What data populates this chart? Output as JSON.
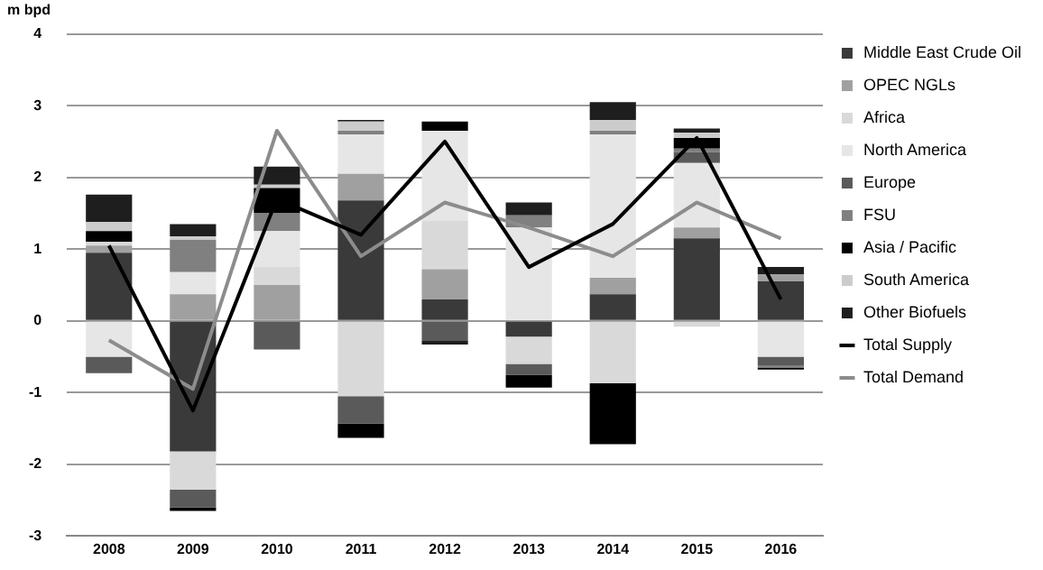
{
  "chart_data": {
    "type": "bar",
    "stacked": true,
    "ylabel": "m bpd",
    "categories": [
      "2008",
      "2009",
      "2010",
      "2011",
      "2012",
      "2013",
      "2014",
      "2015",
      "2016"
    ],
    "ylim": [
      -3,
      4
    ],
    "yticks": [
      -3,
      -2,
      -1,
      0,
      1,
      2,
      3,
      4
    ],
    "grid": "y",
    "legend": "right",
    "marker": "none",
    "series": [
      {
        "name": "Middle East Crude Oil",
        "color": "#3a3a3a",
        "values": [
          0.95,
          -1.82,
          null,
          1.68,
          0.3,
          -0.22,
          0.37,
          1.15,
          0.55
        ]
      },
      {
        "name": "OPEC NGLs",
        "color": "#a0a0a0",
        "values": [
          0.1,
          0.37,
          0.5,
          0.37,
          0.42,
          null,
          0.23,
          0.15,
          0.1
        ]
      },
      {
        "name": "Africa",
        "color": "#d9d9d9",
        "values": [
          0.05,
          -0.53,
          0.25,
          -1.05,
          0.68,
          -0.38,
          -0.87,
          -0.08,
          null
        ]
      },
      {
        "name": "North America",
        "color": "#e6e6e6",
        "values": [
          -0.5,
          0.31,
          0.5,
          0.55,
          1.25,
          1.3,
          2.0,
          0.9,
          -0.5
        ]
      },
      {
        "name": "Europe",
        "color": "#5a5a5a",
        "values": [
          -0.23,
          -0.25,
          -0.4,
          -0.38,
          -0.28,
          -0.15,
          null,
          0.15,
          -0.12
        ]
      },
      {
        "name": "FSU",
        "color": "#808080",
        "values": [
          null,
          0.45,
          0.25,
          0.05,
          null,
          0.17,
          0.05,
          0.05,
          -0.03
        ]
      },
      {
        "name": "Asia / Pacific",
        "color": "#000000",
        "values": [
          0.15,
          -0.05,
          0.35,
          -0.2,
          0.13,
          -0.18,
          -0.85,
          0.15,
          -0.03
        ]
      },
      {
        "name": "South America",
        "color": "#cccccc",
        "values": [
          0.13,
          0.05,
          0.05,
          0.13,
          null,
          null,
          0.15,
          0.07,
          null
        ]
      },
      {
        "name": "Other Biofuels",
        "color": "#1e1e1e",
        "values": [
          0.38,
          0.17,
          0.25,
          0.02,
          -0.05,
          0.18,
          0.25,
          0.06,
          0.1
        ]
      },
      {
        "name": "Total Supply",
        "type": "line",
        "color": "#000000",
        "values": [
          1.05,
          -1.25,
          1.7,
          1.2,
          2.5,
          0.75,
          1.35,
          2.55,
          0.3
        ]
      },
      {
        "name": "Total Demand",
        "type": "line",
        "color": "#8c8c8c",
        "values": [
          -0.27,
          -0.95,
          2.65,
          0.9,
          1.65,
          1.3,
          0.9,
          1.65,
          1.15
        ]
      }
    ]
  }
}
